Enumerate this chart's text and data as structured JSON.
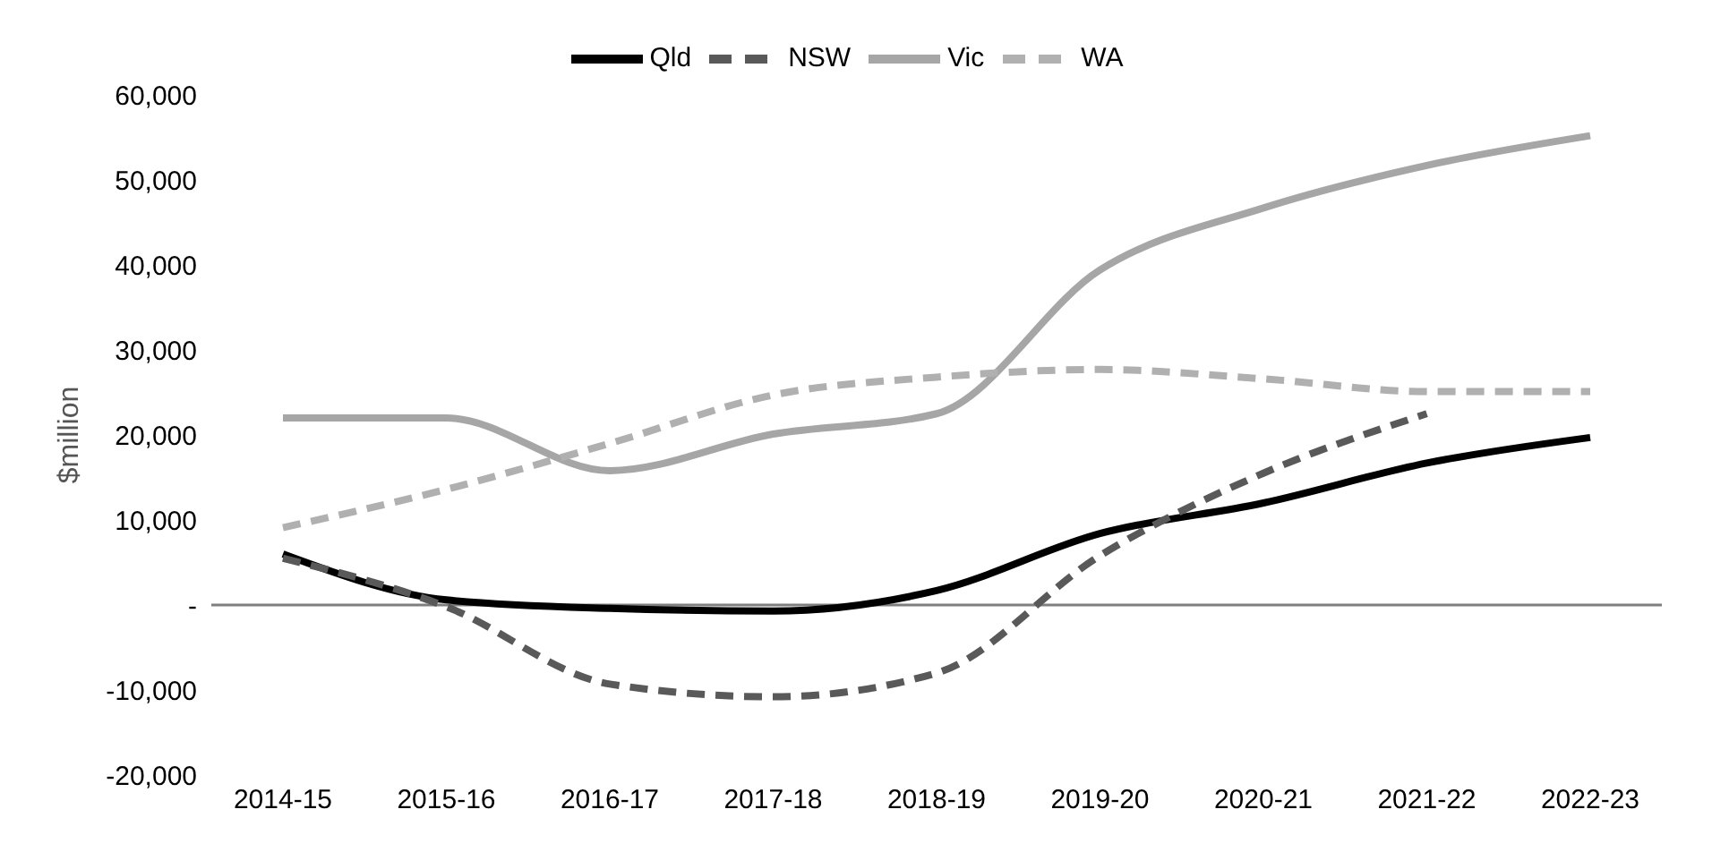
{
  "chart_data": {
    "type": "line",
    "ylabel": "$million",
    "categories": [
      "2014-15",
      "2015-16",
      "2016-17",
      "2017-18",
      "2018-19",
      "2019-20",
      "2020-21",
      "2021-22",
      "2022-23"
    ],
    "series": [
      {
        "name": "Qld",
        "color": "#000000",
        "line_style": "solid",
        "values": [
          6000,
          600,
          -400,
          -700,
          1700,
          8400,
          12000,
          16700,
          19700
        ]
      },
      {
        "name": "NSW",
        "color": "#595959",
        "line_style": "dashed",
        "values": [
          5500,
          -200,
          -9300,
          -10800,
          -8000,
          5800,
          15500,
          22500,
          null
        ]
      },
      {
        "name": "Vic",
        "color": "#a6a6a6",
        "line_style": "solid",
        "values": [
          22000,
          22000,
          15800,
          20100,
          22500,
          39400,
          46700,
          51700,
          55200
        ]
      },
      {
        "name": "WA",
        "color": "#b0b0b0",
        "line_style": "dashed",
        "values": [
          9100,
          13600,
          19000,
          24700,
          26800,
          27700,
          26600,
          25100,
          25100
        ]
      }
    ],
    "ylim": [
      -20000,
      60000
    ],
    "yticks": [
      {
        "value": -20000,
        "label": "-20,000"
      },
      {
        "value": -10000,
        "label": "-10,000"
      },
      {
        "value": 0,
        "label": "-"
      },
      {
        "value": 10000,
        "label": "10,000"
      },
      {
        "value": 20000,
        "label": "20,000"
      },
      {
        "value": 30000,
        "label": "30,000"
      },
      {
        "value": 40000,
        "label": "40,000"
      },
      {
        "value": 50000,
        "label": "50,000"
      },
      {
        "value": 60000,
        "label": "60,000"
      }
    ],
    "ref_lines": [
      {
        "axis": "y",
        "value": 0,
        "color": "#7f7f7f"
      }
    ],
    "grid": false,
    "legend": "top",
    "marker": "none"
  }
}
